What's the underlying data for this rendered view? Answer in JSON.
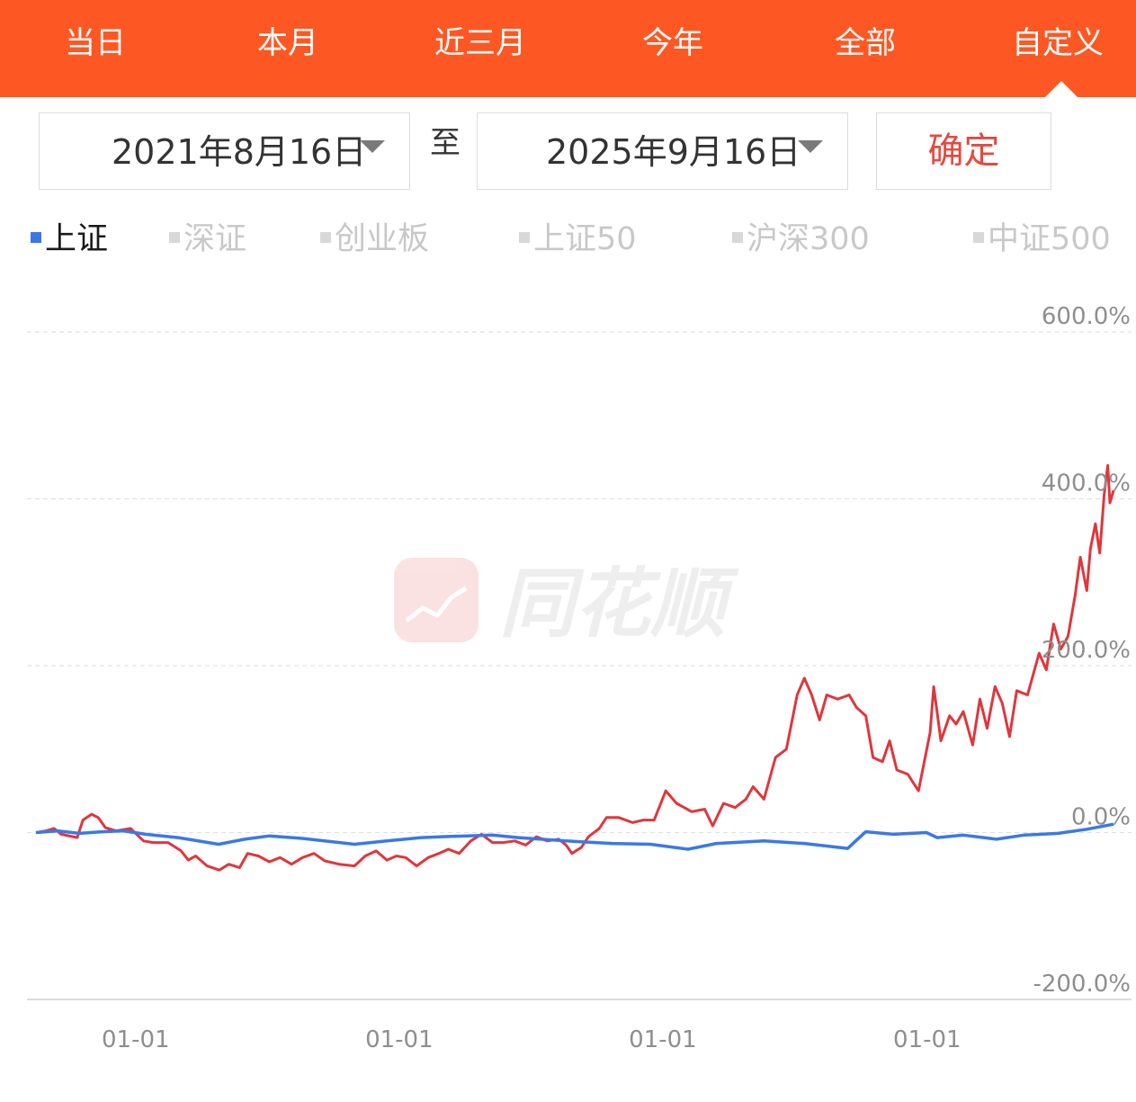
{
  "tabs": [
    {
      "label": "当日"
    },
    {
      "label": "本月"
    },
    {
      "label": "近三月"
    },
    {
      "label": "今年"
    },
    {
      "label": "全部"
    },
    {
      "label": "自定义",
      "selected": true
    }
  ],
  "date_range": {
    "start": "2021年8月16日",
    "separator": "至",
    "end": "2025年9月16日",
    "confirm_label": "确定"
  },
  "legend": [
    {
      "label": "上证",
      "active": true,
      "color": "#3b78e7"
    },
    {
      "label": "深证",
      "active": false,
      "color": "#d8d8d8"
    },
    {
      "label": "创业板",
      "active": false,
      "color": "#d8d8d8"
    },
    {
      "label": "上证50",
      "active": false,
      "color": "#d8d8d8"
    },
    {
      "label": "沪深300",
      "active": false,
      "color": "#d8d8d8"
    },
    {
      "label": "中证500",
      "active": false,
      "color": "#d8d8d8"
    }
  ],
  "watermark": "同花顺",
  "colors": {
    "accent": "#fd5823",
    "stock_line": "#e0363c",
    "index_line": "#3b78e7",
    "confirm_text": "#e34a40"
  },
  "chart_data": {
    "type": "line",
    "ylim": [
      -200,
      600
    ],
    "yticks": [
      600,
      400,
      200,
      0,
      -200
    ],
    "ytick_labels": [
      "600.0%",
      "400.0%",
      "200.0%",
      "0.0%",
      "-200.0%"
    ],
    "x_range": [
      "2021-08-16",
      "2025-09-16"
    ],
    "xticks": [
      "2022-01-01",
      "2023-01-01",
      "2024-01-01",
      "2025-01-01"
    ],
    "xtick_labels": [
      "01-01",
      "01-01",
      "01-01",
      "01-01"
    ],
    "grid": true,
    "series": [
      {
        "name": "上证",
        "color": "#3b78e7",
        "points": [
          [
            "2021-08-16",
            0
          ],
          [
            "2021-09-15",
            2
          ],
          [
            "2021-10-15",
            -1
          ],
          [
            "2021-11-15",
            1
          ],
          [
            "2021-12-15",
            2
          ],
          [
            "2022-01-15",
            -2
          ],
          [
            "2022-03-01",
            -6
          ],
          [
            "2022-04-26",
            -14
          ],
          [
            "2022-06-01",
            -8
          ],
          [
            "2022-07-05",
            -4
          ],
          [
            "2022-08-20",
            -7
          ],
          [
            "2022-10-31",
            -14
          ],
          [
            "2022-12-15",
            -10
          ],
          [
            "2023-01-31",
            -6
          ],
          [
            "2023-03-01",
            -5
          ],
          [
            "2023-05-10",
            -3
          ],
          [
            "2023-06-15",
            -6
          ],
          [
            "2023-08-20",
            -10
          ],
          [
            "2023-10-23",
            -13
          ],
          [
            "2023-12-15",
            -14
          ],
          [
            "2024-02-05",
            -20
          ],
          [
            "2024-03-15",
            -13
          ],
          [
            "2024-05-20",
            -10
          ],
          [
            "2024-07-15",
            -13
          ],
          [
            "2024-09-13",
            -19
          ],
          [
            "2024-09-24",
            -10
          ],
          [
            "2024-10-08",
            1
          ],
          [
            "2024-11-15",
            -2
          ],
          [
            "2024-12-31",
            0
          ],
          [
            "2025-01-15",
            -6
          ],
          [
            "2025-02-20",
            -3
          ],
          [
            "2025-04-07",
            -8
          ],
          [
            "2025-05-15",
            -3
          ],
          [
            "2025-07-01",
            -1
          ],
          [
            "2025-08-10",
            4
          ],
          [
            "2025-09-16",
            10
          ]
        ]
      },
      {
        "color": "#e0363c",
        "points": [
          [
            "2021-08-16",
            0
          ],
          [
            "2021-08-30",
            2
          ],
          [
            "2021-09-10",
            5
          ],
          [
            "2021-09-20",
            -2
          ],
          [
            "2021-10-12",
            -6
          ],
          [
            "2021-10-20",
            15
          ],
          [
            "2021-11-01",
            22
          ],
          [
            "2021-11-10",
            18
          ],
          [
            "2021-11-20",
            6
          ],
          [
            "2021-12-05",
            2
          ],
          [
            "2021-12-25",
            5
          ],
          [
            "2022-01-12",
            -10
          ],
          [
            "2022-01-25",
            -12
          ],
          [
            "2022-02-15",
            -12
          ],
          [
            "2022-03-05",
            -22
          ],
          [
            "2022-03-15",
            -33
          ],
          [
            "2022-03-25",
            -28
          ],
          [
            "2022-04-10",
            -40
          ],
          [
            "2022-04-27",
            -45
          ],
          [
            "2022-05-10",
            -38
          ],
          [
            "2022-05-25",
            -42
          ],
          [
            "2022-06-05",
            -25
          ],
          [
            "2022-06-20",
            -28
          ],
          [
            "2022-07-05",
            -35
          ],
          [
            "2022-07-20",
            -30
          ],
          [
            "2022-08-05",
            -38
          ],
          [
            "2022-08-20",
            -30
          ],
          [
            "2022-09-05",
            -25
          ],
          [
            "2022-09-20",
            -34
          ],
          [
            "2022-10-10",
            -38
          ],
          [
            "2022-10-31",
            -40
          ],
          [
            "2022-11-15",
            -28
          ],
          [
            "2022-11-30",
            -22
          ],
          [
            "2022-12-15",
            -33
          ],
          [
            "2022-12-28",
            -28
          ],
          [
            "2023-01-10",
            -30
          ],
          [
            "2023-01-25",
            -40
          ],
          [
            "2023-02-10",
            -30
          ],
          [
            "2023-02-25",
            -25
          ],
          [
            "2023-03-10",
            -20
          ],
          [
            "2023-03-25",
            -25
          ],
          [
            "2023-04-10",
            -10
          ],
          [
            "2023-04-25",
            -2
          ],
          [
            "2023-05-10",
            -12
          ],
          [
            "2023-05-25",
            -12
          ],
          [
            "2023-06-10",
            -10
          ],
          [
            "2023-06-25",
            -15
          ],
          [
            "2023-07-10",
            -5
          ],
          [
            "2023-07-25",
            -10
          ],
          [
            "2023-08-10",
            -8
          ],
          [
            "2023-08-20",
            -15
          ],
          [
            "2023-08-28",
            -25
          ],
          [
            "2023-09-10",
            -18
          ],
          [
            "2023-09-20",
            -5
          ],
          [
            "2023-10-05",
            5
          ],
          [
            "2023-10-15",
            18
          ],
          [
            "2023-11-01",
            18
          ],
          [
            "2023-11-20",
            12
          ],
          [
            "2023-12-05",
            15
          ],
          [
            "2023-12-20",
            15
          ],
          [
            "2024-01-05",
            50
          ],
          [
            "2024-01-20",
            35
          ],
          [
            "2024-02-10",
            25
          ],
          [
            "2024-02-28",
            28
          ],
          [
            "2024-03-10",
            8
          ],
          [
            "2024-03-25",
            35
          ],
          [
            "2024-04-10",
            30
          ],
          [
            "2024-04-25",
            40
          ],
          [
            "2024-05-05",
            55
          ],
          [
            "2024-05-20",
            40
          ],
          [
            "2024-06-05",
            90
          ],
          [
            "2024-06-20",
            100
          ],
          [
            "2024-07-05",
            165
          ],
          [
            "2024-07-15",
            185
          ],
          [
            "2024-07-25",
            165
          ],
          [
            "2024-08-05",
            135
          ],
          [
            "2024-08-15",
            165
          ],
          [
            "2024-08-30",
            160
          ],
          [
            "2024-09-15",
            165
          ],
          [
            "2024-09-25",
            150
          ],
          [
            "2024-10-08",
            140
          ],
          [
            "2024-10-18",
            90
          ],
          [
            "2024-10-31",
            85
          ],
          [
            "2024-11-10",
            110
          ],
          [
            "2024-11-20",
            75
          ],
          [
            "2024-12-05",
            70
          ],
          [
            "2024-12-20",
            50
          ],
          [
            "2025-01-05",
            120
          ],
          [
            "2025-01-10",
            175
          ],
          [
            "2025-01-20",
            110
          ],
          [
            "2025-02-01",
            140
          ],
          [
            "2025-02-10",
            130
          ],
          [
            "2025-02-20",
            145
          ],
          [
            "2025-03-05",
            105
          ],
          [
            "2025-03-15",
            160
          ],
          [
            "2025-03-25",
            125
          ],
          [
            "2025-04-05",
            175
          ],
          [
            "2025-04-15",
            155
          ],
          [
            "2025-04-25",
            115
          ],
          [
            "2025-05-05",
            170
          ],
          [
            "2025-05-20",
            165
          ],
          [
            "2025-06-05",
            215
          ],
          [
            "2025-06-15",
            195
          ],
          [
            "2025-06-25",
            250
          ],
          [
            "2025-07-05",
            220
          ],
          [
            "2025-07-15",
            235
          ],
          [
            "2025-07-25",
            285
          ],
          [
            "2025-08-01",
            330
          ],
          [
            "2025-08-10",
            290
          ],
          [
            "2025-08-15",
            340
          ],
          [
            "2025-08-22",
            370
          ],
          [
            "2025-08-28",
            335
          ],
          [
            "2025-09-03",
            405
          ],
          [
            "2025-09-08",
            440
          ],
          [
            "2025-09-11",
            395
          ],
          [
            "2025-09-16",
            410
          ]
        ]
      }
    ]
  }
}
